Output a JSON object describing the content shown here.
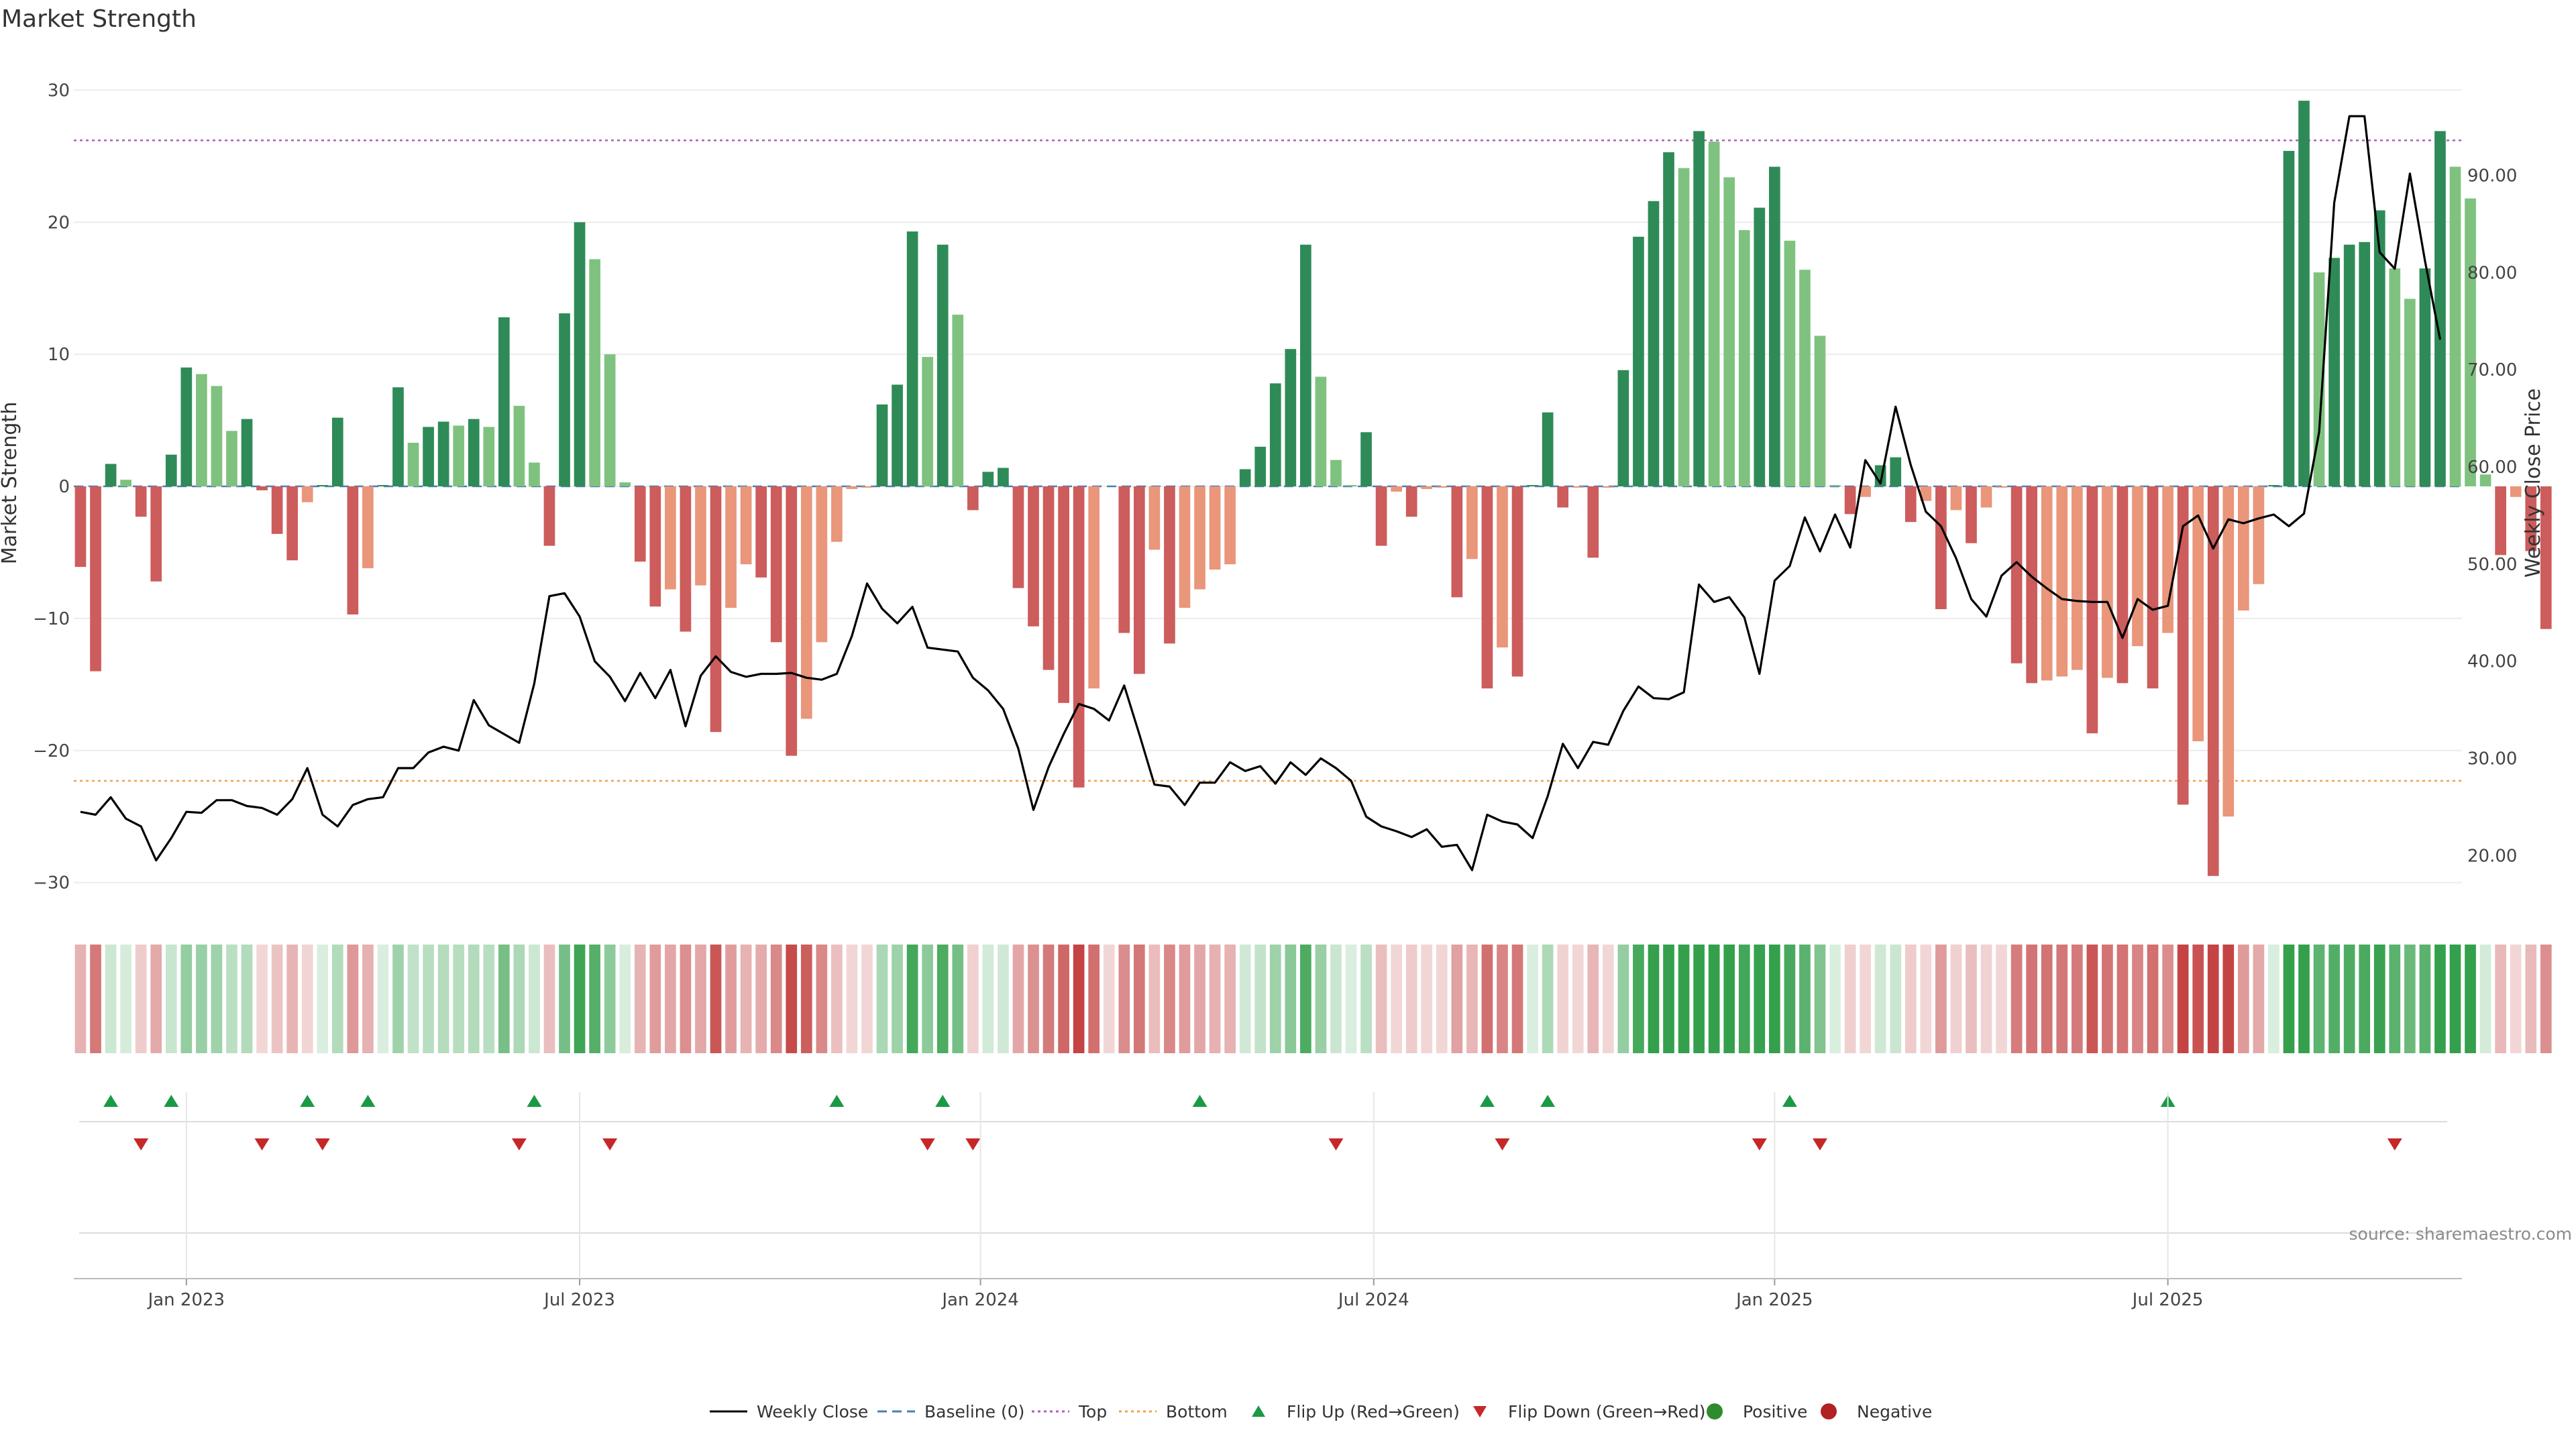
{
  "chart_data": {
    "type": "bar",
    "title": "Market Strength",
    "ylabel_left": "Market Strength",
    "ylabel_right": "Weekly Close Price",
    "ylim_left": [
      -32,
      32
    ],
    "ylim_right": [
      14.5,
      101.5
    ],
    "yticks_left": [
      "30",
      "20",
      "10",
      "0",
      "−10",
      "−20",
      "−30"
    ],
    "yticks_left_values": [
      30,
      20,
      10,
      0,
      -10,
      -20,
      -30
    ],
    "yticks_right": [
      "90.00",
      "80.00",
      "70.00",
      "60.00",
      "50.00",
      "40.00",
      "30.00",
      "20.00"
    ],
    "yticks_right_values": [
      90,
      80,
      70,
      60,
      50,
      40,
      30,
      20
    ],
    "x_start_week": 0,
    "x_end_week": 157,
    "xticks": [
      {
        "label": "Jan 2023",
        "week": 7
      },
      {
        "label": "Jul 2023",
        "week": 33
      },
      {
        "label": "Jan 2024",
        "week": 59.5
      },
      {
        "label": "Jul 2024",
        "week": 85.5
      },
      {
        "label": "Jan 2025",
        "week": 112
      },
      {
        "label": "Jul 2025",
        "week": 138
      }
    ],
    "top_line": 26.2,
    "bottom_line": -22.3,
    "strength_values": [
      -6.1,
      -14,
      1.7,
      0.5,
      -2.3,
      -7.2,
      2.4,
      9,
      8.5,
      7.6,
      4.2,
      5.1,
      -0.3,
      -3.6,
      -5.6,
      -1.2,
      0.1,
      5.2,
      -9.7,
      -6.2,
      0.1,
      7.5,
      3.3,
      4.5,
      4.9,
      4.6,
      5.1,
      4.5,
      12.8,
      6.1,
      1.8,
      -4.5,
      13.1,
      20,
      17.2,
      10,
      0.3,
      -5.7,
      -9.1,
      -7.8,
      -11,
      -7.5,
      -18.6,
      -9.2,
      -5.9,
      -6.9,
      -11.8,
      -20.4,
      -17.6,
      -11.8,
      -4.2,
      -0.2,
      -0.1,
      6.2,
      7.7,
      19.3,
      9.8,
      18.3,
      13,
      -1.8,
      1.1,
      1.4,
      -7.7,
      -10.6,
      -13.9,
      -16.4,
      -22.8,
      -15.3,
      0,
      -11.1,
      -14.2,
      -4.8,
      -11.9,
      -9.2,
      -7.8,
      -6.3,
      -5.9,
      1.3,
      3,
      7.8,
      10.4,
      18.3,
      8.3,
      2,
      0.1,
      4.1,
      -4.5,
      -0.4,
      -2.3,
      -0.2,
      -0.1,
      -8.4,
      -5.5,
      -15.3,
      -12.2,
      -14.4,
      0.1,
      5.6,
      -1.6,
      -0.1,
      -5.4,
      -0.1,
      8.8,
      18.9,
      21.6,
      25.3,
      24.1,
      26.9,
      26.1,
      23.4,
      19.4,
      21.1,
      24.2,
      18.6,
      16.4,
      11.4,
      0.1,
      -2.1,
      -0.8,
      1.6,
      2.2,
      -2.7,
      -1.1,
      -9.3,
      -1.8,
      -4.3,
      -1.6,
      -0.1,
      -13.4,
      -14.9,
      -14.7,
      -14.4,
      -13.9,
      -18.7,
      -14.5,
      -14.9,
      -12.1,
      -15.3,
      -11.1,
      -24.1,
      -19.3,
      -29.5,
      -25,
      -9.4,
      -7.4,
      0.1,
      25.4,
      29.2,
      16.2,
      17.3,
      18.3,
      18.5,
      20.9,
      16.5,
      14.2,
      16.5,
      26.9,
      24.2,
      21.8,
      0.9,
      -5.2,
      -0.8,
      -4.9,
      -10.8
    ],
    "strength_weeks_start": 0,
    "weekly_close": [
      [
        0,
        24.5
      ],
      [
        1,
        24.2
      ],
      [
        2,
        26
      ],
      [
        3,
        23.8
      ],
      [
        4,
        23
      ],
      [
        5,
        19.5
      ],
      [
        6,
        21.8
      ],
      [
        7,
        24.5
      ],
      [
        8,
        24.4
      ],
      [
        9,
        25.7
      ],
      [
        10,
        25.7
      ],
      [
        11,
        25.1
      ],
      [
        12,
        24.9
      ],
      [
        13,
        24.2
      ],
      [
        14,
        25.8
      ],
      [
        15,
        29
      ],
      [
        16,
        24.2
      ],
      [
        17,
        23
      ],
      [
        18,
        25.2
      ],
      [
        19,
        25.8
      ],
      [
        20,
        26
      ],
      [
        21,
        29
      ],
      [
        22,
        29
      ],
      [
        23,
        30.6
      ],
      [
        24,
        31.2
      ],
      [
        25,
        30.8
      ],
      [
        26,
        36
      ],
      [
        27,
        33.4
      ],
      [
        28,
        32.5
      ],
      [
        29,
        31.6
      ],
      [
        30,
        37.7
      ],
      [
        31,
        46.7
      ],
      [
        32,
        47
      ],
      [
        33,
        44.6
      ],
      [
        34,
        40
      ],
      [
        35,
        38.4
      ],
      [
        36,
        35.9
      ],
      [
        37,
        38.8
      ],
      [
        38,
        36.2
      ],
      [
        39,
        39.1
      ],
      [
        40,
        33.3
      ],
      [
        41,
        38.5
      ],
      [
        42,
        40.5
      ],
      [
        43,
        38.9
      ],
      [
        44,
        38.4
      ],
      [
        45,
        38.7
      ],
      [
        46,
        38.7
      ],
      [
        47,
        38.8
      ],
      [
        48,
        38.3
      ],
      [
        49,
        38.1
      ],
      [
        50,
        38.7
      ],
      [
        51,
        42.6
      ],
      [
        52,
        48
      ],
      [
        53,
        45.4
      ],
      [
        54,
        43.9
      ],
      [
        55,
        45.6
      ],
      [
        56,
        41.4
      ],
      [
        57,
        41.2
      ],
      [
        58,
        41
      ],
      [
        59,
        38.3
      ],
      [
        60,
        37
      ],
      [
        61,
        35.1
      ],
      [
        62,
        31
      ],
      [
        63,
        24.7
      ],
      [
        64,
        29.1
      ],
      [
        65,
        32.5
      ],
      [
        66,
        35.6
      ],
      [
        67,
        35.1
      ],
      [
        68,
        33.9
      ],
      [
        69,
        37.5
      ],
      [
        70,
        32.5
      ],
      [
        71,
        27.3
      ],
      [
        72,
        27.1
      ],
      [
        73,
        25.2
      ],
      [
        74,
        27.5
      ],
      [
        75,
        27.5
      ],
      [
        76,
        29.6
      ],
      [
        77,
        28.7
      ],
      [
        78,
        29.2
      ],
      [
        79,
        27.4
      ],
      [
        80,
        29.6
      ],
      [
        81,
        28.3
      ],
      [
        82,
        30
      ],
      [
        83,
        29
      ],
      [
        84,
        27.7
      ],
      [
        85,
        24
      ],
      [
        86,
        23
      ],
      [
        87,
        22.5
      ],
      [
        88,
        21.9
      ],
      [
        89,
        22.7
      ],
      [
        90,
        20.9
      ],
      [
        91,
        21.1
      ],
      [
        92,
        18.5
      ],
      [
        93,
        24.2
      ],
      [
        94,
        23.5
      ],
      [
        95,
        23.2
      ],
      [
        96,
        21.8
      ],
      [
        97,
        26.1
      ],
      [
        98,
        31.5
      ],
      [
        99,
        29
      ],
      [
        100,
        31.7
      ],
      [
        101,
        31.4
      ],
      [
        102,
        34.9
      ],
      [
        103,
        37.4
      ],
      [
        104,
        36.2
      ],
      [
        105,
        36.1
      ],
      [
        106,
        36.8
      ],
      [
        107,
        47.9
      ],
      [
        108,
        46.1
      ],
      [
        109,
        46.6
      ],
      [
        110,
        44.5
      ],
      [
        111,
        38.7
      ],
      [
        112,
        48.3
      ],
      [
        113,
        49.8
      ],
      [
        114,
        54.8
      ],
      [
        115,
        51.3
      ],
      [
        116,
        55.1
      ],
      [
        117,
        51.7
      ],
      [
        118,
        60.7
      ],
      [
        119,
        58.3
      ],
      [
        120,
        66.2
      ],
      [
        121,
        60.2
      ],
      [
        122,
        55.4
      ],
      [
        123,
        53.9
      ],
      [
        124,
        50.6
      ],
      [
        125,
        46.4
      ],
      [
        126,
        44.6
      ],
      [
        127,
        48.8
      ],
      [
        128,
        50.2
      ],
      [
        129,
        48.7
      ],
      [
        130,
        47.5
      ],
      [
        131,
        46.4
      ],
      [
        132,
        46.2
      ],
      [
        133,
        46.1
      ],
      [
        134,
        46.1
      ],
      [
        135,
        42.4
      ],
      [
        136,
        46.4
      ],
      [
        137,
        45.3
      ],
      [
        138,
        45.7
      ],
      [
        139,
        53.9
      ],
      [
        140,
        55
      ],
      [
        141,
        51.6
      ],
      [
        142,
        54.6
      ],
      [
        143,
        54.2
      ],
      [
        144,
        54.7
      ],
      [
        145,
        55.1
      ],
      [
        146,
        53.9
      ],
      [
        147,
        55.2
      ],
      [
        148,
        63.6
      ],
      [
        149,
        87.2
      ],
      [
        150,
        96.1
      ],
      [
        151,
        96.1
      ],
      [
        152,
        82.1
      ],
      [
        153,
        80.4
      ],
      [
        154,
        90.2
      ],
      [
        155,
        81.2
      ],
      [
        156,
        73.1
      ]
    ],
    "heat_strips": {
      "gaps_after_weeks": [
        65
      ],
      "note": "colour per week follows strength value"
    },
    "flip_up_weeks": [
      2,
      6,
      15,
      19,
      30,
      50,
      57,
      74,
      93,
      97,
      113,
      138
    ],
    "flip_down_weeks": [
      4,
      12,
      16,
      29,
      35,
      56,
      59,
      83,
      94,
      111,
      115,
      153
    ],
    "series_colors": {
      "green_dark": "#2e8b57",
      "green_light": "#7fc27f",
      "red_dark": "#cd5c5c",
      "red_light": "#e9967a",
      "close_line": "#000000",
      "baseline": "#4a7fb0",
      "top": "#b05cc0",
      "bottom": "#f0a050",
      "flip_up": "#1a9a45",
      "flip_down": "#c62828",
      "positive": "#2e8b2e",
      "negative": "#b22222"
    },
    "source_note": "source: sharemaestro.com",
    "legend": [
      {
        "label": "Weekly Close",
        "kind": "line"
      },
      {
        "label": "Baseline (0)",
        "kind": "dash"
      },
      {
        "label": "Top",
        "kind": "dot"
      },
      {
        "label": "Bottom",
        "kind": "dot"
      },
      {
        "label": "Flip Up (Red→Green)",
        "kind": "tri-up"
      },
      {
        "label": "Flip Down (Green→Red)",
        "kind": "tri-down"
      },
      {
        "label": "Positive",
        "kind": "circle"
      },
      {
        "label": "Negative",
        "kind": "circle"
      }
    ]
  }
}
